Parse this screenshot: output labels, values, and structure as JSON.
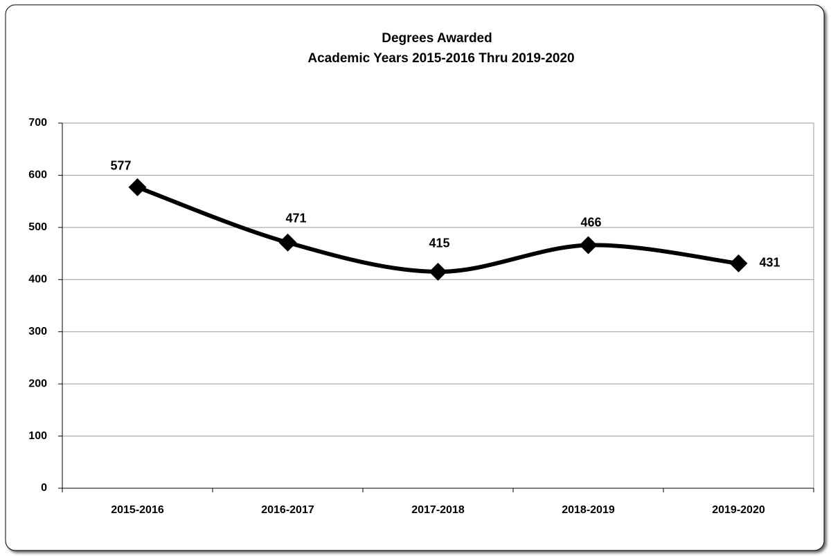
{
  "chart_data": {
    "type": "line",
    "title": "Degrees Awarded",
    "subtitle": "Academic Years 2015-2016 Thru 2019-2020",
    "categories": [
      "2015-2016",
      "2016-2017",
      "2017-2018",
      "2018-2019",
      "2019-2020"
    ],
    "values": [
      577,
      471,
      415,
      466,
      431
    ],
    "color": "#000000",
    "ylim": [
      0,
      700
    ],
    "yticks": [
      0,
      100,
      200,
      300,
      400,
      500,
      600,
      700
    ],
    "grid": true,
    "smooth": true,
    "marker": "diamond"
  }
}
